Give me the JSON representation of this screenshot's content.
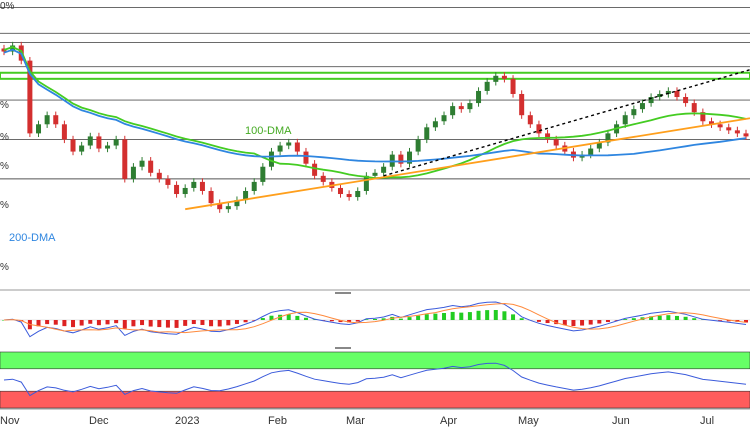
{
  "chart_data": {
    "type": "candlestick",
    "months": [
      "Nov",
      "Dec",
      "2023",
      "Feb",
      "Mar",
      "Apr",
      "May",
      "Jun",
      "Jul"
    ],
    "level_labels": [
      "0%",
      "%",
      "%",
      "%",
      "%",
      "%"
    ],
    "annotations": {
      "dma100": "100-DMA",
      "dma200": "200-DMA"
    },
    "price": {
      "ylim": [
        0.615,
        0.71
      ],
      "horizontal_levels": [
        0.7075,
        0.699,
        0.696,
        0.688,
        0.677,
        0.664,
        0.651
      ],
      "resistance_zone": [
        0.684,
        0.686
      ],
      "series": [
        {
          "name": "close",
          "color": "#2e7d32",
          "x": [
            0,
            3,
            6,
            9,
            12,
            15,
            18,
            21,
            24,
            27,
            30,
            33,
            36,
            39,
            42,
            45,
            48,
            51,
            54,
            57,
            60,
            63,
            66,
            69,
            72,
            75,
            78,
            81,
            84,
            87,
            90,
            93,
            96,
            99,
            102,
            105,
            108,
            111,
            114,
            117,
            120,
            123,
            126,
            129,
            132,
            135,
            138,
            141,
            144,
            147,
            150,
            153,
            156,
            159,
            162,
            165,
            168,
            171,
            174,
            177,
            180,
            183,
            186,
            189,
            192,
            195,
            198,
            201,
            204,
            207,
            210,
            213,
            216,
            219,
            222,
            225,
            228,
            231,
            234,
            237,
            240,
            243,
            246,
            249,
            252,
            255,
            258
          ],
          "y": [
            0.693,
            0.695,
            0.69,
            0.666,
            0.669,
            0.672,
            0.669,
            0.664,
            0.66,
            0.662,
            0.665,
            0.661,
            0.662,
            0.664,
            0.651,
            0.655,
            0.657,
            0.653,
            0.651,
            0.649,
            0.646,
            0.648,
            0.65,
            0.647,
            0.643,
            0.641,
            0.642,
            0.644,
            0.647,
            0.65,
            0.655,
            0.66,
            0.662,
            0.663,
            0.66,
            0.656,
            0.652,
            0.65,
            0.648,
            0.646,
            0.645,
            0.647,
            0.652,
            0.653,
            0.655,
            0.659,
            0.656,
            0.66,
            0.664,
            0.668,
            0.67,
            0.672,
            0.675,
            0.674,
            0.676,
            0.68,
            0.683,
            0.685,
            0.684,
            0.679,
            0.672,
            0.669,
            0.666,
            0.664,
            0.662,
            0.66,
            0.658,
            0.659,
            0.661,
            0.663,
            0.666,
            0.669,
            0.672,
            0.674,
            0.676,
            0.678,
            0.679,
            0.68,
            0.678,
            0.676,
            0.673,
            0.67,
            0.669,
            0.668,
            0.667,
            0.666,
            0.665
          ]
        }
      ]
    },
    "macd": {
      "ylim": [
        -1,
        1
      ]
    },
    "rsi": {
      "ylim": [
        0,
        100
      ],
      "overbought": 70,
      "oversold": 30
    },
    "colors": {
      "grid": "#888888",
      "dma100": "#44cc22",
      "dma200": "#2f86e0",
      "support": "#ff9f1c",
      "trend_dotted": "#000000",
      "up": "#2e7d32",
      "down": "#d32f2f",
      "macd_line": "#3b5bdb",
      "signal_line": "#ff8a3d",
      "rsi_line": "#3b5bdb",
      "rsi_green": "#66ff66",
      "rsi_red": "#ff5c5c"
    }
  }
}
